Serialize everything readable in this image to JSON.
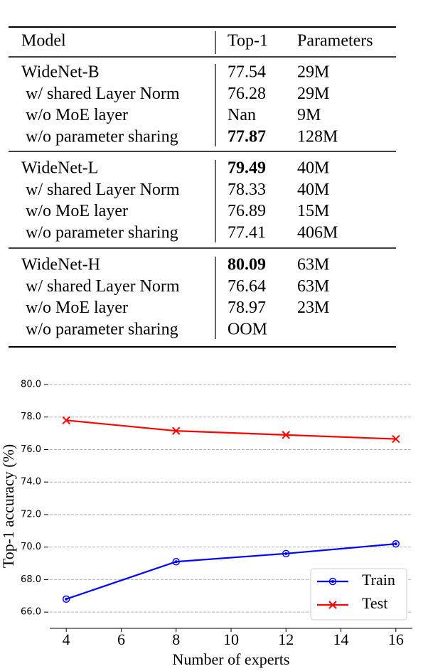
{
  "table": {
    "header": [
      "Model",
      "Top-1",
      "Parameters"
    ],
    "groups": [
      {
        "rows": [
          {
            "cells": [
              "WideNet-B",
              "77.54",
              "29M"
            ]
          },
          {
            "cells": [
              "w/ shared Layer Norm",
              "76.28",
              "29M"
            ]
          },
          {
            "cells": [
              "w/o MoE layer",
              "Nan",
              "9M"
            ]
          },
          {
            "cells": [
              "w/o parameter sharing",
              "77.87",
              "128M"
            ],
            "bold_cell": 1
          }
        ]
      },
      {
        "rows": [
          {
            "cells": [
              "WideNet-L",
              "79.49",
              "40M"
            ],
            "bold_cell": 1
          },
          {
            "cells": [
              "w/ shared Layer Norm",
              "78.33",
              "40M"
            ]
          },
          {
            "cells": [
              "w/o MoE layer",
              "76.89",
              "15M"
            ]
          },
          {
            "cells": [
              "w/o parameter sharing",
              "77.41",
              "406M"
            ]
          }
        ]
      },
      {
        "rows": [
          {
            "cells": [
              "WideNet-H",
              "80.09",
              "63M"
            ],
            "bold_cell": 1
          },
          {
            "cells": [
              "w/ shared Layer Norm",
              "76.64",
              "63M"
            ]
          },
          {
            "cells": [
              "w/o MoE layer",
              "78.97",
              "23M"
            ]
          },
          {
            "cells": [
              "w/o parameter sharing",
              "OOM"
            ]
          }
        ]
      }
    ]
  },
  "chart_data": {
    "type": "line",
    "x_label": "Number of experts",
    "y_label": "Top-1 accuracy (%)",
    "x": [
      4,
      8,
      12,
      16
    ],
    "series": [
      {
        "name": "Train",
        "color": "#0000ff",
        "marker": "circle",
        "values": [
          66.8,
          69.1,
          69.6,
          70.2
        ]
      },
      {
        "name": "Test",
        "color": "#ff0000",
        "marker": "x",
        "values": [
          77.8,
          77.15,
          76.9,
          76.65
        ]
      }
    ],
    "xlim": [
      3.4,
      16.6
    ],
    "ylim": [
      65,
      80
    ],
    "xticks": [
      4,
      6,
      8,
      10,
      12,
      14,
      16
    ],
    "yticks": [
      {
        "value": 66,
        "label": "66.0"
      },
      {
        "value": 68,
        "label": "68.0"
      },
      {
        "value": 70,
        "label": "70.0"
      },
      {
        "value": 72,
        "label": "72.0"
      },
      {
        "value": 74,
        "label": "74.0"
      },
      {
        "value": 76,
        "label": "76.0"
      },
      {
        "value": 78,
        "label": "78.0"
      },
      {
        "value": 80,
        "label": "80.0"
      }
    ],
    "grid": true,
    "legend": "lower right"
  }
}
